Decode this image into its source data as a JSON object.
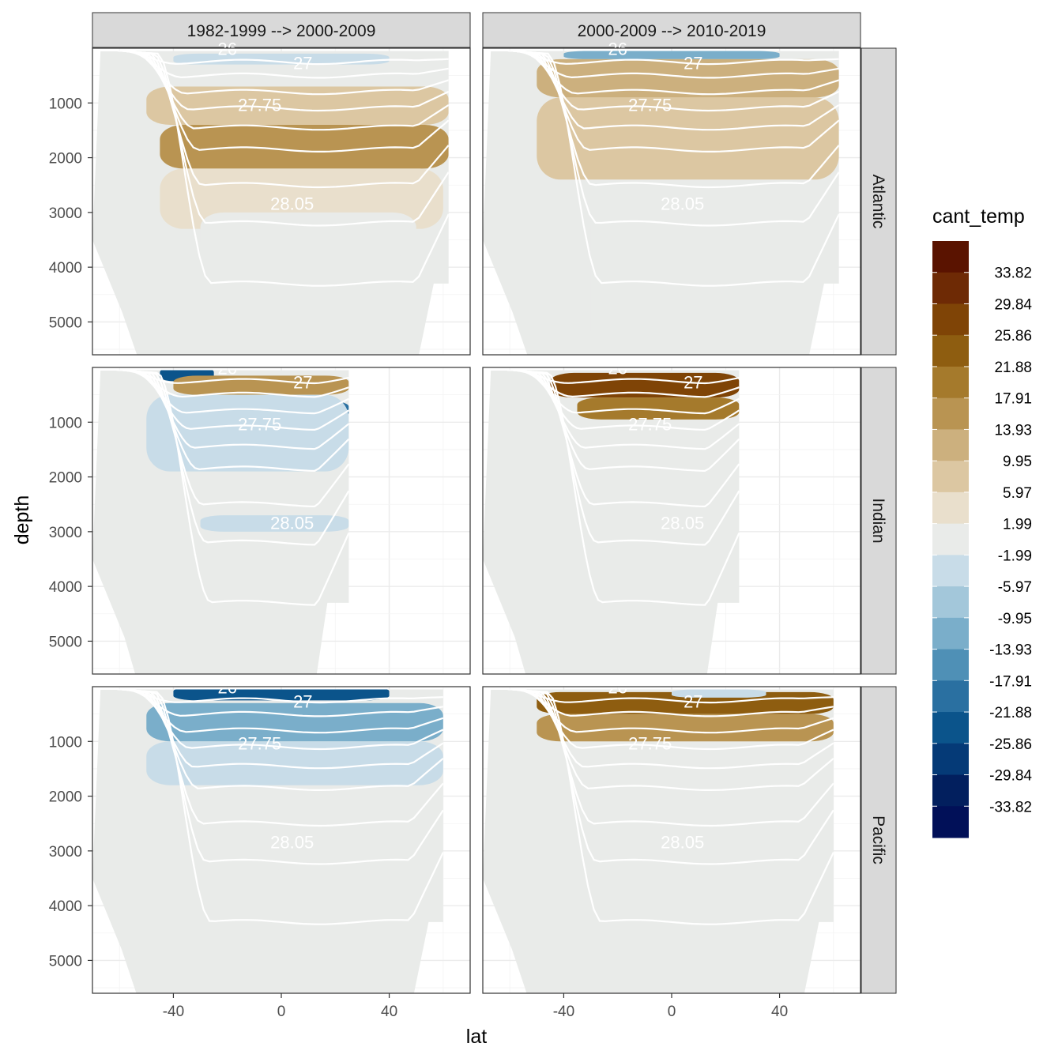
{
  "chart_data": {
    "type": "heatmap",
    "title": "",
    "xlabel": "lat",
    "ylabel": "depth",
    "xlim": [
      -70,
      70
    ],
    "ylim": [
      5600,
      0
    ],
    "x_ticks": [
      -40,
      0,
      40
    ],
    "x_tick_labels": [
      "-40",
      "0",
      "40"
    ],
    "y_ticks": [
      1000,
      2000,
      3000,
      4000,
      5000
    ],
    "y_tick_labels": [
      "1000",
      "2000",
      "3000",
      "4000",
      "5000"
    ],
    "column_facets": [
      "1982-1999 --> 2000-2009",
      "2000-2009 --> 2010-2019"
    ],
    "row_facets": [
      "Atlantic",
      "Indian",
      "Pacific"
    ],
    "legend": {
      "title": "cant_temp",
      "break_labels": [
        "33.82",
        "29.84",
        "25.86",
        "21.88",
        "17.91",
        "13.93",
        "9.95",
        "5.97",
        "1.99",
        "-1.99",
        "-5.97",
        "-9.95",
        "-13.93",
        "-17.91",
        "-21.88",
        "-25.86",
        "-29.84",
        "-33.82"
      ],
      "colors": [
        "#5a1300",
        "#6e2a05",
        "#7f4406",
        "#8e5d10",
        "#a57a2c",
        "#b99452",
        "#ccb07e",
        "#dcc7a2",
        "#e9dfcc",
        "#e9ebe9",
        "#c8dce8",
        "#a3c7da",
        "#7aaeca",
        "#4f90b6",
        "#2a70a1",
        "#0b548b",
        "#053a77",
        "#021f5e",
        "#011058"
      ]
    },
    "contour_labels": [
      "26",
      "27",
      "27.75",
      "28.05"
    ],
    "panels": [
      {
        "ocean": "Atlantic",
        "period": "1982-1999 --> 2000-2009",
        "lat_range": [
          -70,
          62
        ],
        "features": [
          {
            "lat": [
              -40,
              40
            ],
            "depth": [
              100,
              300
            ],
            "value": -5.97
          },
          {
            "lat": [
              -50,
              55
            ],
            "depth": [
              300,
              700
            ],
            "value": -1.99
          },
          {
            "lat": [
              -50,
              62
            ],
            "depth": [
              700,
              1400
            ],
            "value": 5.97
          },
          {
            "lat": [
              -45,
              62
            ],
            "depth": [
              1400,
              2200
            ],
            "value": 13.93
          },
          {
            "lat": [
              -45,
              60
            ],
            "depth": [
              2200,
              3300
            ],
            "value": 1.99
          },
          {
            "lat": [
              -30,
              50
            ],
            "depth": [
              3000,
              3800
            ],
            "value": -1.99
          }
        ]
      },
      {
        "ocean": "Atlantic",
        "period": "2000-2009 --> 2010-2019",
        "lat_range": [
          -70,
          62
        ],
        "features": [
          {
            "lat": [
              -40,
              40
            ],
            "depth": [
              50,
              200
            ],
            "value": -13.93
          },
          {
            "lat": [
              -50,
              62
            ],
            "depth": [
              200,
              900
            ],
            "value": 9.95
          },
          {
            "lat": [
              -50,
              62
            ],
            "depth": [
              900,
              2400
            ],
            "value": 5.97
          },
          {
            "lat": [
              -30,
              45
            ],
            "depth": [
              2800,
              5600
            ],
            "value": -1.99
          }
        ]
      },
      {
        "ocean": "Indian",
        "period": "1982-1999 --> 2000-2009",
        "lat_range": [
          -70,
          25
        ],
        "features": [
          {
            "lat": [
              -45,
              -25
            ],
            "depth": [
              0,
              250
            ],
            "value": -25.86
          },
          {
            "lat": [
              -40,
              25
            ],
            "depth": [
              150,
              500
            ],
            "value": 13.93
          },
          {
            "lat": [
              -20,
              25
            ],
            "depth": [
              600,
              950
            ],
            "value": -21.88
          },
          {
            "lat": [
              -50,
              25
            ],
            "depth": [
              500,
              1900
            ],
            "value": -5.97
          },
          {
            "lat": [
              -30,
              25
            ],
            "depth": [
              2700,
              3000
            ],
            "value": -5.97
          }
        ]
      },
      {
        "ocean": "Indian",
        "period": "2000-2009 --> 2010-2019",
        "lat_range": [
          -70,
          25
        ],
        "features": [
          {
            "lat": [
              -45,
              25
            ],
            "depth": [
              100,
              550
            ],
            "value": 25.86
          },
          {
            "lat": [
              -35,
              25
            ],
            "depth": [
              550,
              950
            ],
            "value": 17.91
          }
        ]
      },
      {
        "ocean": "Pacific",
        "period": "1982-1999 --> 2000-2009",
        "lat_range": [
          -70,
          60
        ],
        "features": [
          {
            "lat": [
              -40,
              40
            ],
            "depth": [
              0,
              250
            ],
            "value": -25.86
          },
          {
            "lat": [
              -50,
              60
            ],
            "depth": [
              300,
              1000
            ],
            "value": -13.93
          },
          {
            "lat": [
              -50,
              60
            ],
            "depth": [
              1000,
              1800
            ],
            "value": -5.97
          },
          {
            "lat": [
              -5,
              50
            ],
            "depth": [
              3300,
              4000
            ],
            "value": -1.99
          }
        ]
      },
      {
        "ocean": "Pacific",
        "period": "2000-2009 --> 2010-2019",
        "lat_range": [
          -70,
          60
        ],
        "features": [
          {
            "lat": [
              -50,
              60
            ],
            "depth": [
              100,
              500
            ],
            "value": 21.88
          },
          {
            "lat": [
              -50,
              60
            ],
            "depth": [
              500,
              1000
            ],
            "value": 13.93
          },
          {
            "lat": [
              0,
              35
            ],
            "depth": [
              50,
              200
            ],
            "value": -5.97
          }
        ]
      }
    ]
  }
}
